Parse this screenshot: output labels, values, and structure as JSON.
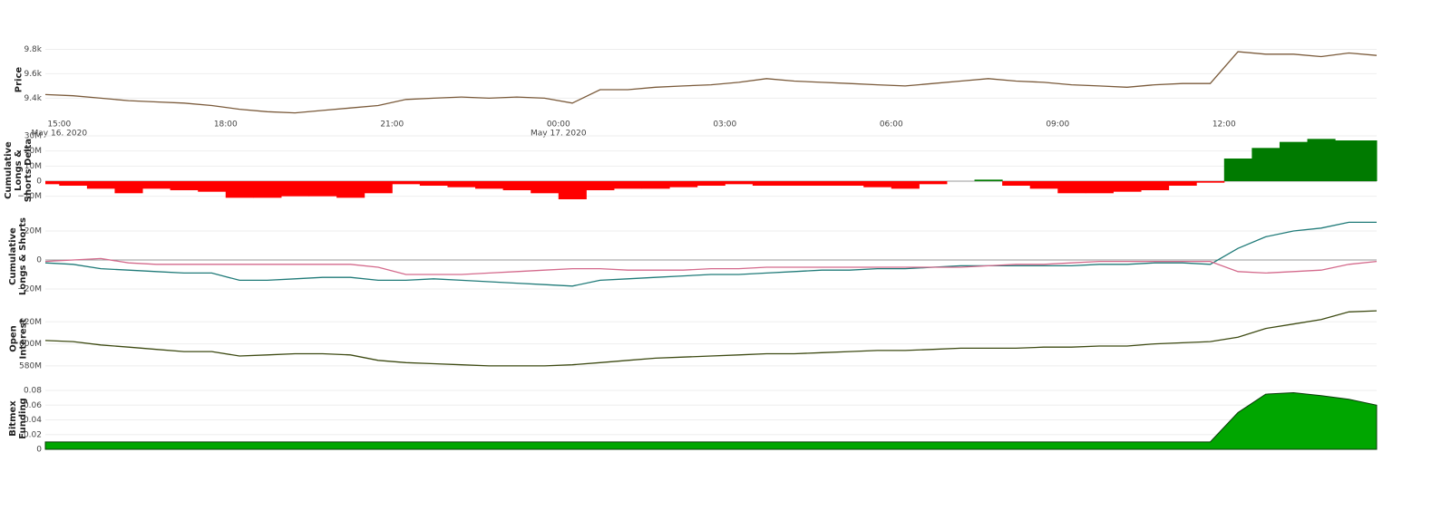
{
  "chart_data": [
    {
      "type": "line",
      "y_title": "Price",
      "color": "#7a5a3a",
      "grid": true,
      "xlim": [
        "2020-05-16T14:45",
        "2020-05-17T14:45"
      ],
      "xticks": [
        {
          "value": "2020-05-16T15:00",
          "label": "15:00"
        },
        {
          "value": "2020-05-16T18:00",
          "label": "18:00"
        },
        {
          "value": "2020-05-16T21:00",
          "label": "21:00"
        },
        {
          "value": "2020-05-17T00:00",
          "label": "00:00"
        },
        {
          "value": "2020-05-17T03:00",
          "label": "03:00"
        },
        {
          "value": "2020-05-17T06:00",
          "label": "06:00"
        },
        {
          "value": "2020-05-17T09:00",
          "label": "09:00"
        },
        {
          "value": "2020-05-17T12:00",
          "label": "12:00"
        }
      ],
      "x_date_labels": [
        {
          "value": "2020-05-16T15:00",
          "label": "May 16, 2020"
        },
        {
          "value": "2020-05-17T00:00",
          "label": "May 17, 2020"
        }
      ],
      "ylim": [
        9240,
        9870
      ],
      "yticks": [
        {
          "value": 9400,
          "label": "9.4k"
        },
        {
          "value": 9600,
          "label": "9.6k"
        },
        {
          "value": 9800,
          "label": "9.8k"
        }
      ],
      "x": [
        "2020-05-16T14:45",
        "2020-05-16T15:15",
        "2020-05-16T15:45",
        "2020-05-16T16:15",
        "2020-05-16T16:45",
        "2020-05-16T17:15",
        "2020-05-16T17:45",
        "2020-05-16T18:15",
        "2020-05-16T18:45",
        "2020-05-16T19:15",
        "2020-05-16T19:45",
        "2020-05-16T20:15",
        "2020-05-16T20:45",
        "2020-05-16T21:15",
        "2020-05-16T21:45",
        "2020-05-16T22:15",
        "2020-05-16T22:45",
        "2020-05-16T23:15",
        "2020-05-16T23:45",
        "2020-05-17T00:15",
        "2020-05-17T00:45",
        "2020-05-17T01:15",
        "2020-05-17T01:45",
        "2020-05-17T02:15",
        "2020-05-17T02:45",
        "2020-05-17T03:15",
        "2020-05-17T03:45",
        "2020-05-17T04:15",
        "2020-05-17T04:45",
        "2020-05-17T05:15",
        "2020-05-17T05:45",
        "2020-05-17T06:15",
        "2020-05-17T06:45",
        "2020-05-17T07:15",
        "2020-05-17T07:45",
        "2020-05-17T08:15",
        "2020-05-17T08:45",
        "2020-05-17T09:15",
        "2020-05-17T09:45",
        "2020-05-17T10:15",
        "2020-05-17T10:45",
        "2020-05-17T11:15",
        "2020-05-17T11:45",
        "2020-05-17T12:15",
        "2020-05-17T12:45",
        "2020-05-17T13:15",
        "2020-05-17T13:45",
        "2020-05-17T14:15",
        "2020-05-17T14:45"
      ],
      "values": [
        9430,
        9420,
        9400,
        9380,
        9370,
        9360,
        9340,
        9310,
        9290,
        9280,
        9300,
        9320,
        9340,
        9390,
        9400,
        9410,
        9400,
        9410,
        9400,
        9360,
        9470,
        9470,
        9490,
        9500,
        9510,
        9530,
        9560,
        9540,
        9530,
        9520,
        9510,
        9500,
        9520,
        9540,
        9560,
        9540,
        9530,
        9510,
        9500,
        9490,
        9510,
        9520,
        9520,
        9780,
        9760,
        9760,
        9740,
        9770,
        9750
      ]
    },
    {
      "type": "bar",
      "y_title": "Cumulative Longs & Shorts Delta",
      "color_positive": "#007a00",
      "color_negative": "#ff0000",
      "grid": true,
      "zeroline": true,
      "xlim": [
        "2020-05-16T14:45",
        "2020-05-17T14:45"
      ],
      "ylim": [
        -15,
        30
      ],
      "yticks": [
        {
          "value": -10,
          "label": "−10M"
        },
        0,
        {
          "value": 10,
          "label": "10M"
        },
        {
          "value": 20,
          "label": "20M"
        },
        {
          "value": 30,
          "label": "30M"
        }
      ],
      "x": [
        "2020-05-16T14:45",
        "2020-05-16T15:15",
        "2020-05-16T15:45",
        "2020-05-16T16:15",
        "2020-05-16T16:45",
        "2020-05-16T17:15",
        "2020-05-16T17:45",
        "2020-05-16T18:15",
        "2020-05-16T18:45",
        "2020-05-16T19:15",
        "2020-05-16T19:45",
        "2020-05-16T20:15",
        "2020-05-16T20:45",
        "2020-05-16T21:15",
        "2020-05-16T21:45",
        "2020-05-16T22:15",
        "2020-05-16T22:45",
        "2020-05-16T23:15",
        "2020-05-16T23:45",
        "2020-05-17T00:15",
        "2020-05-17T00:45",
        "2020-05-17T01:15",
        "2020-05-17T01:45",
        "2020-05-17T02:15",
        "2020-05-17T02:45",
        "2020-05-17T03:15",
        "2020-05-17T03:45",
        "2020-05-17T04:15",
        "2020-05-17T04:45",
        "2020-05-17T05:15",
        "2020-05-17T05:45",
        "2020-05-17T06:15",
        "2020-05-17T06:45",
        "2020-05-17T07:15",
        "2020-05-17T07:45",
        "2020-05-17T08:15",
        "2020-05-17T08:45",
        "2020-05-17T09:15",
        "2020-05-17T09:45",
        "2020-05-17T10:15",
        "2020-05-17T10:45",
        "2020-05-17T11:15",
        "2020-05-17T11:45",
        "2020-05-17T12:15",
        "2020-05-17T12:45",
        "2020-05-17T13:15",
        "2020-05-17T13:45",
        "2020-05-17T14:15",
        "2020-05-17T14:45"
      ],
      "values": [
        -2,
        -3,
        -5,
        -8,
        -5,
        -6,
        -7,
        -11,
        -11,
        -10,
        -10,
        -11,
        -8,
        -2,
        -3,
        -4,
        -5,
        -6,
        -8,
        -12,
        -6,
        -5,
        -5,
        -4,
        -3,
        -2,
        -3,
        -3,
        -3,
        -3,
        -4,
        -5,
        -2,
        0,
        1,
        -3,
        -5,
        -8,
        -8,
        -7,
        -6,
        -3,
        -1,
        15,
        22,
        26,
        28,
        27,
        27
      ]
    },
    {
      "type": "line",
      "y_title": "Cumulative Longs & Shorts",
      "grid": true,
      "zeroline": true,
      "xlim": [
        "2020-05-16T14:45",
        "2020-05-17T14:45"
      ],
      "ylim": [
        -25,
        30
      ],
      "yticks": [
        {
          "value": -20,
          "label": "−20M"
        },
        0,
        {
          "value": 20,
          "label": "20M"
        }
      ],
      "x": [
        "2020-05-16T14:45",
        "2020-05-16T15:15",
        "2020-05-16T15:45",
        "2020-05-16T16:15",
        "2020-05-16T16:45",
        "2020-05-16T17:15",
        "2020-05-16T17:45",
        "2020-05-16T18:15",
        "2020-05-16T18:45",
        "2020-05-16T19:15",
        "2020-05-16T19:45",
        "2020-05-16T20:15",
        "2020-05-16T20:45",
        "2020-05-16T21:15",
        "2020-05-16T21:45",
        "2020-05-16T22:15",
        "2020-05-16T22:45",
        "2020-05-16T23:15",
        "2020-05-16T23:45",
        "2020-05-17T00:15",
        "2020-05-17T00:45",
        "2020-05-17T01:15",
        "2020-05-17T01:45",
        "2020-05-17T02:15",
        "2020-05-17T02:45",
        "2020-05-17T03:15",
        "2020-05-17T03:45",
        "2020-05-17T04:15",
        "2020-05-17T04:45",
        "2020-05-17T05:15",
        "2020-05-17T05:45",
        "2020-05-17T06:15",
        "2020-05-17T06:45",
        "2020-05-17T07:15",
        "2020-05-17T07:45",
        "2020-05-17T08:15",
        "2020-05-17T08:45",
        "2020-05-17T09:15",
        "2020-05-17T09:45",
        "2020-05-17T10:15",
        "2020-05-17T10:45",
        "2020-05-17T11:15",
        "2020-05-17T11:45",
        "2020-05-17T12:15",
        "2020-05-17T12:45",
        "2020-05-17T13:15",
        "2020-05-17T13:45",
        "2020-05-17T14:15",
        "2020-05-17T14:45"
      ],
      "series": [
        {
          "color": "#1f7a78",
          "values": [
            -2,
            -3,
            -6,
            -7,
            -8,
            -9,
            -9,
            -14,
            -14,
            -13,
            -12,
            -12,
            -14,
            -14,
            -13,
            -14,
            -15,
            -16,
            -17,
            -18,
            -14,
            -13,
            -12,
            -11,
            -10,
            -10,
            -9,
            -8,
            -7,
            -7,
            -6,
            -6,
            -5,
            -4,
            -4,
            -4,
            -4,
            -4,
            -3,
            -3,
            -2,
            -2,
            -3,
            8,
            16,
            20,
            22,
            26,
            26
          ]
        },
        {
          "color": "#d46a8c",
          "values": [
            -1,
            0,
            1,
            -2,
            -3,
            -3,
            -3,
            -3,
            -3,
            -3,
            -3,
            -3,
            -5,
            -10,
            -10,
            -10,
            -9,
            -8,
            -7,
            -6,
            -6,
            -7,
            -7,
            -7,
            -6,
            -6,
            -5,
            -5,
            -5,
            -5,
            -5,
            -5,
            -5,
            -5,
            -4,
            -3,
            -3,
            -2,
            -1,
            -1,
            -1,
            -1,
            -1,
            -8,
            -9,
            -8,
            -7,
            -3,
            -1
          ]
        }
      ]
    },
    {
      "type": "line",
      "y_title": "Open Interest",
      "color": "#3d4a12",
      "grid": true,
      "xlim": [
        "2020-05-16T14:45",
        "2020-05-17T14:45"
      ],
      "ylim": [
        575,
        635
      ],
      "yticks": [
        {
          "value": 580,
          "label": "580M"
        },
        {
          "value": 600,
          "label": "600M"
        },
        {
          "value": 620,
          "label": "620M"
        }
      ],
      "x": [
        "2020-05-16T14:45",
        "2020-05-16T15:15",
        "2020-05-16T15:45",
        "2020-05-16T16:15",
        "2020-05-16T16:45",
        "2020-05-16T17:15",
        "2020-05-16T17:45",
        "2020-05-16T18:15",
        "2020-05-16T18:45",
        "2020-05-16T19:15",
        "2020-05-16T19:45",
        "2020-05-16T20:15",
        "2020-05-16T20:45",
        "2020-05-16T21:15",
        "2020-05-16T21:45",
        "2020-05-16T22:15",
        "2020-05-16T22:45",
        "2020-05-16T23:15",
        "2020-05-16T23:45",
        "2020-05-17T00:15",
        "2020-05-17T00:45",
        "2020-05-17T01:15",
        "2020-05-17T01:45",
        "2020-05-17T02:15",
        "2020-05-17T02:45",
        "2020-05-17T03:15",
        "2020-05-17T03:45",
        "2020-05-17T04:15",
        "2020-05-17T04:45",
        "2020-05-17T05:15",
        "2020-05-17T05:45",
        "2020-05-17T06:15",
        "2020-05-17T06:45",
        "2020-05-17T07:15",
        "2020-05-17T07:45",
        "2020-05-17T08:15",
        "2020-05-17T08:45",
        "2020-05-17T09:15",
        "2020-05-17T09:45",
        "2020-05-17T10:15",
        "2020-05-17T10:45",
        "2020-05-17T11:15",
        "2020-05-17T11:45",
        "2020-05-17T12:15",
        "2020-05-17T12:45",
        "2020-05-17T13:15",
        "2020-05-17T13:45",
        "2020-05-17T14:15",
        "2020-05-17T14:45"
      ],
      "values": [
        603,
        602,
        599,
        597,
        595,
        593,
        593,
        589,
        590,
        591,
        591,
        590,
        585,
        583,
        582,
        581,
        580,
        580,
        580,
        581,
        583,
        585,
        587,
        588,
        589,
        590,
        591,
        591,
        592,
        593,
        594,
        594,
        595,
        596,
        596,
        596,
        597,
        597,
        598,
        598,
        600,
        601,
        602,
        606,
        614,
        618,
        622,
        629,
        630
      ]
    },
    {
      "type": "area",
      "y_title": "Bitmex Funding",
      "color": "#00a600",
      "grid": true,
      "xlim": [
        "2020-05-16T14:45",
        "2020-05-17T14:45"
      ],
      "ylim": [
        0,
        0.085
      ],
      "yticks": [
        0,
        0.02,
        0.04,
        0.06,
        0.08
      ],
      "x": [
        "2020-05-16T14:45",
        "2020-05-16T15:15",
        "2020-05-16T15:45",
        "2020-05-16T16:15",
        "2020-05-16T16:45",
        "2020-05-16T17:15",
        "2020-05-16T17:45",
        "2020-05-16T18:15",
        "2020-05-16T18:45",
        "2020-05-16T19:15",
        "2020-05-16T19:45",
        "2020-05-16T20:15",
        "2020-05-16T20:45",
        "2020-05-16T21:15",
        "2020-05-16T21:45",
        "2020-05-16T22:15",
        "2020-05-16T22:45",
        "2020-05-16T23:15",
        "2020-05-16T23:45",
        "2020-05-17T00:15",
        "2020-05-17T00:45",
        "2020-05-17T01:15",
        "2020-05-17T01:45",
        "2020-05-17T02:15",
        "2020-05-17T02:45",
        "2020-05-17T03:15",
        "2020-05-17T03:45",
        "2020-05-17T04:15",
        "2020-05-17T04:45",
        "2020-05-17T05:15",
        "2020-05-17T05:45",
        "2020-05-17T06:15",
        "2020-05-17T06:45",
        "2020-05-17T07:15",
        "2020-05-17T07:45",
        "2020-05-17T08:15",
        "2020-05-17T08:45",
        "2020-05-17T09:15",
        "2020-05-17T09:45",
        "2020-05-17T10:15",
        "2020-05-17T10:45",
        "2020-05-17T11:15",
        "2020-05-17T11:45",
        "2020-05-17T12:15",
        "2020-05-17T12:45",
        "2020-05-17T13:15",
        "2020-05-17T13:45",
        "2020-05-17T14:15",
        "2020-05-17T14:45"
      ],
      "values": [
        0.01,
        0.01,
        0.01,
        0.01,
        0.01,
        0.01,
        0.01,
        0.01,
        0.01,
        0.01,
        0.01,
        0.01,
        0.01,
        0.01,
        0.01,
        0.01,
        0.01,
        0.01,
        0.01,
        0.01,
        0.01,
        0.01,
        0.01,
        0.01,
        0.01,
        0.01,
        0.01,
        0.01,
        0.01,
        0.01,
        0.01,
        0.01,
        0.01,
        0.01,
        0.01,
        0.01,
        0.01,
        0.01,
        0.01,
        0.01,
        0.01,
        0.01,
        0.01,
        0.05,
        0.075,
        0.077,
        0.073,
        0.068,
        0.06
      ]
    }
  ]
}
